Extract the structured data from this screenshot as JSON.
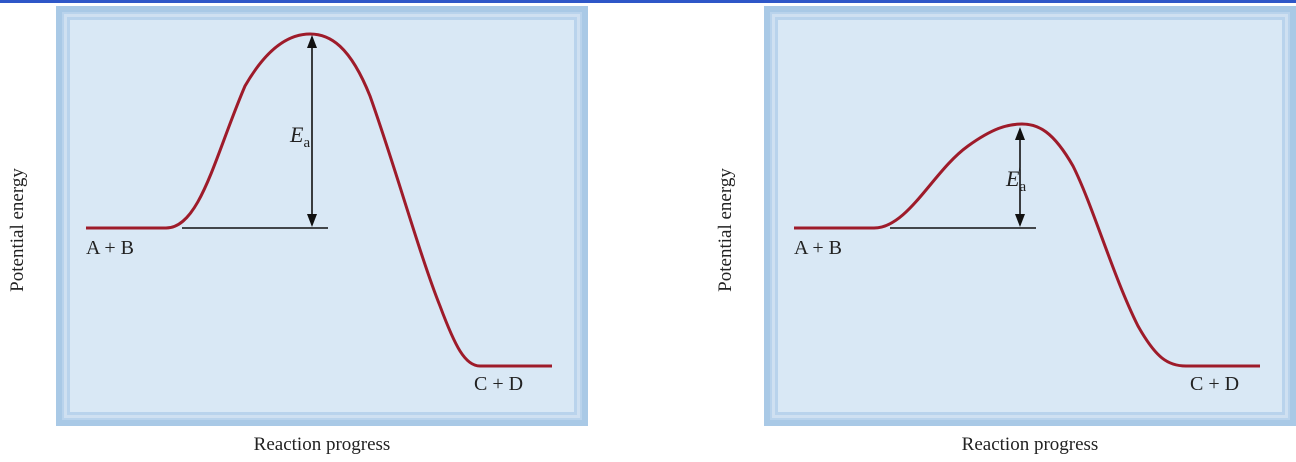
{
  "diagrams": [
    {
      "y_axis_label": "Potential energy",
      "x_axis_label": "Reaction progress",
      "reactants_label": "A + B",
      "products_label": "C + D",
      "activation_symbol": "E",
      "activation_subscript": "a",
      "activation_prime": "",
      "curve_color": "#9e1b2a"
    },
    {
      "y_axis_label": "Potential energy",
      "x_axis_label": "Reaction progress",
      "reactants_label": "A + B",
      "products_label": "C + D",
      "activation_symbol": "E",
      "activation_subscript": "a",
      "activation_prime": "′",
      "curve_color": "#9e1b2a"
    }
  ]
}
